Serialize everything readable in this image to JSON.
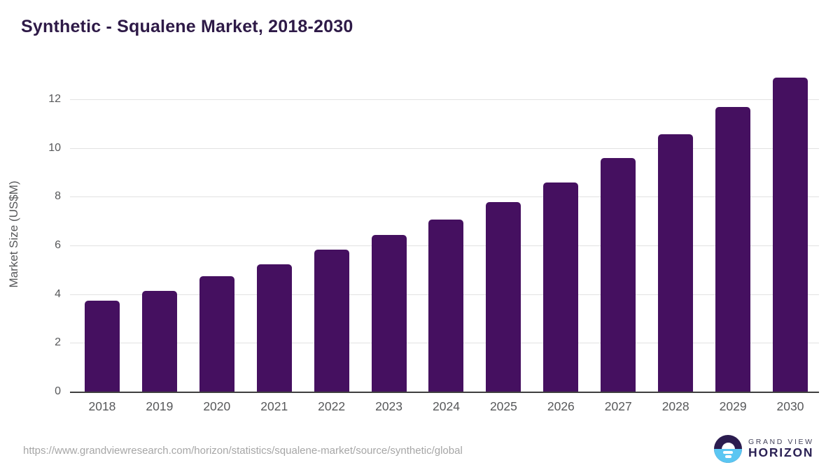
{
  "title": "Synthetic - Squalene Market, 2018-2030",
  "footer": {
    "source_url": "https://www.grandviewresearch.com/horizon/statistics/squalene-market/source/synthetic/global",
    "logo": {
      "line1": "GRAND VIEW",
      "line2": "HORIZON"
    }
  },
  "colors": {
    "bar": "#451060",
    "title": "#2e1a47",
    "axis_text": "#57585a",
    "gridline": "#e2e2e2",
    "axis_line": "#3f3f3f",
    "url_text": "#a6a6a6",
    "logo_dark": "#2b1c4f",
    "logo_blue": "#5bc6f2",
    "logo_text": "#2b2154"
  },
  "chart_data": {
    "type": "bar",
    "title": "Synthetic - Squalene Market, 2018-2030",
    "categories": [
      "2018",
      "2019",
      "2020",
      "2021",
      "2022",
      "2023",
      "2024",
      "2025",
      "2026",
      "2027",
      "2028",
      "2029",
      "2030"
    ],
    "values": [
      3.75,
      4.15,
      4.75,
      5.25,
      5.85,
      6.45,
      7.1,
      7.8,
      8.6,
      9.6,
      10.6,
      11.7,
      12.9
    ],
    "xlabel": "",
    "ylabel": "Market Size (US$M)",
    "ylim": [
      0,
      13.2
    ],
    "yticks": [
      0,
      2,
      4,
      6,
      8,
      10,
      12
    ],
    "grid": "horizontal",
    "legend": "none",
    "bar_color": "#451060"
  }
}
